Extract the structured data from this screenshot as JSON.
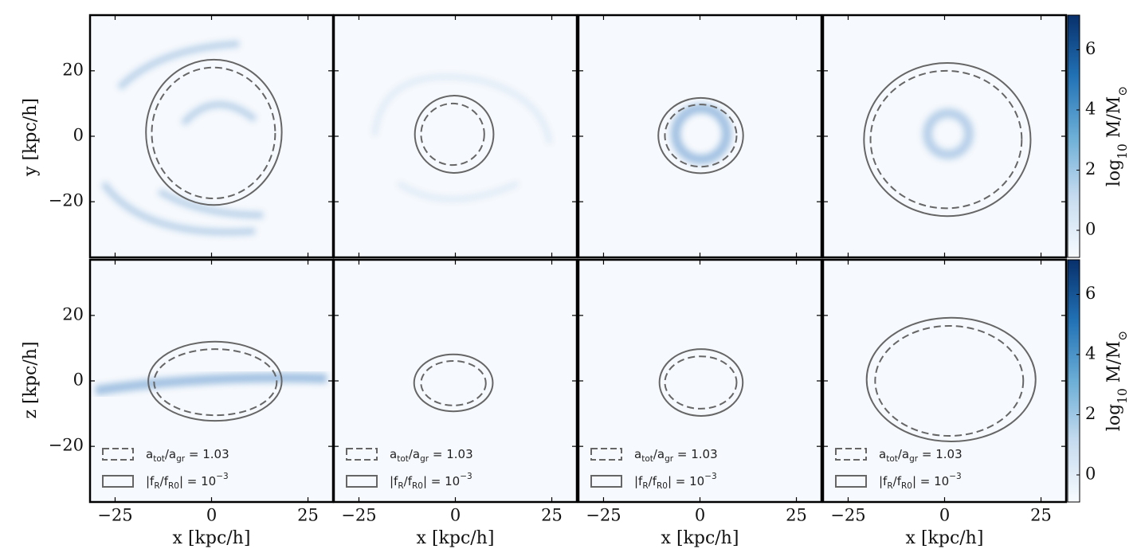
{
  "chart_data": {
    "type": "density",
    "xlabel": "x [kpc/h]",
    "xlim": [
      -31.5,
      31.5
    ],
    "xticks": [
      {
        "value": -25,
        "label": "−25"
      },
      0,
      25
    ],
    "colorbar": {
      "label_parts": [
        [
          "log",
          ""
        ],
        [
          "10",
          "sub"
        ],
        [
          " M/M",
          ""
        ],
        [
          "⊙",
          "sub"
        ]
      ],
      "clim": [
        -0.9,
        7.15
      ],
      "ticks": [
        0,
        2,
        4,
        6
      ],
      "colors": [
        "#f7fbff",
        "#c6dbef",
        "#6baed6",
        "#2171b5",
        "#08306b"
      ]
    },
    "legend": [
      {
        "style": "dashed",
        "label_parts": [
          [
            "a",
            ""
          ],
          [
            "tot",
            "sub"
          ],
          [
            "/a",
            ""
          ],
          [
            "gr",
            "sub"
          ],
          [
            " = 1.03",
            ""
          ]
        ]
      },
      {
        "style": "solid",
        "label_parts": [
          [
            "|f",
            ""
          ],
          [
            "R",
            "sub"
          ],
          [
            "/f",
            ""
          ],
          [
            "R0",
            "sub"
          ],
          [
            "| = 10",
            ""
          ],
          [
            "−3",
            "sup"
          ]
        ]
      }
    ],
    "ellipse_color": "#666666",
    "rows": [
      {
        "ylabel": "y [kpc/h]",
        "ylim": [
          -37,
          37
        ],
        "yticks": [
          20,
          0,
          {
            "value": -20,
            "label": "−20"
          }
        ],
        "panels": [
          {
            "dashed": {
              "cx": 0.5,
              "cy": 1,
              "rx": 16,
              "ry": 20
            },
            "solid": {
              "cx": 0.6,
              "cy": 1.2,
              "rx": 17.6,
              "ry": 22.2
            }
          },
          {
            "dashed": {
              "cx": -0.7,
              "cy": 0.6,
              "rx": 8.2,
              "ry": 9.4
            },
            "solid": {
              "cx": -0.3,
              "cy": 0.6,
              "rx": 10.2,
              "ry": 11.8
            }
          },
          {
            "dashed": {
              "cx": 0.2,
              "cy": 0.2,
              "rx": 9.3,
              "ry": 9.5
            },
            "solid": {
              "cx": 0.2,
              "cy": 0.2,
              "rx": 11,
              "ry": 11.5
            }
          },
          {
            "dashed": {
              "cx": 0.4,
              "cy": -1,
              "rx": 19.6,
              "ry": 21
            },
            "solid": {
              "cx": 0.7,
              "cy": -1,
              "rx": 21.6,
              "ry": 23.4
            }
          }
        ]
      },
      {
        "ylabel": "z [kpc/h]",
        "ylim": [
          -37,
          37
        ],
        "yticks": [
          20,
          0,
          {
            "value": -20,
            "label": "−20"
          }
        ],
        "panels": [
          {
            "dashed": {
              "cx": 1,
              "cy": -0.4,
              "rx": 15.9,
              "ry": 10.1
            },
            "solid": {
              "cx": 0.9,
              "cy": -0.1,
              "rx": 17.3,
              "ry": 12.1
            }
          },
          {
            "dashed": {
              "cx": -0.5,
              "cy": -0.7,
              "rx": 8.4,
              "ry": 6.8
            },
            "solid": {
              "cx": -0.5,
              "cy": -0.6,
              "rx": 10.2,
              "ry": 8.7
            }
          },
          {
            "dashed": {
              "cx": 0.2,
              "cy": -0.5,
              "rx": 9.3,
              "ry": 8
            },
            "solid": {
              "cx": 0.3,
              "cy": -0.5,
              "rx": 10.8,
              "ry": 10.2
            }
          },
          {
            "dashed": {
              "cx": 1.2,
              "cy": 0,
              "rx": 19.2,
              "ry": 16.8
            },
            "solid": {
              "cx": 1.7,
              "cy": 0.4,
              "rx": 21.9,
              "ry": 18.9
            }
          }
        ]
      }
    ]
  }
}
